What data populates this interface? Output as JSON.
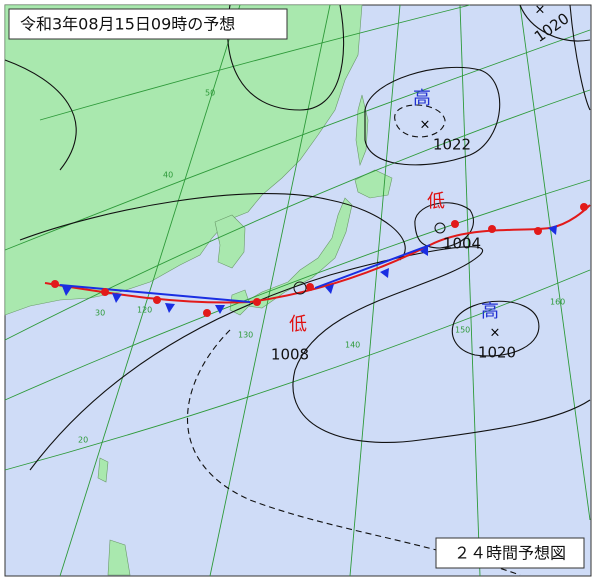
{
  "header": {
    "title": "令和3年08月15日09時の予想"
  },
  "footer": {
    "label": "２４時間予想図"
  },
  "systems": [
    {
      "kind": "高",
      "pressure": 1022
    },
    {
      "kind": "低",
      "pressure": 1004
    },
    {
      "kind": "高",
      "pressure": 1020
    },
    {
      "kind": "低",
      "pressure": 1008
    }
  ],
  "isobar_labels": [
    1020
  ],
  "grid_labels": [
    "50",
    "40",
    "30",
    "20",
    "120",
    "130",
    "140",
    "150",
    "160"
  ]
}
